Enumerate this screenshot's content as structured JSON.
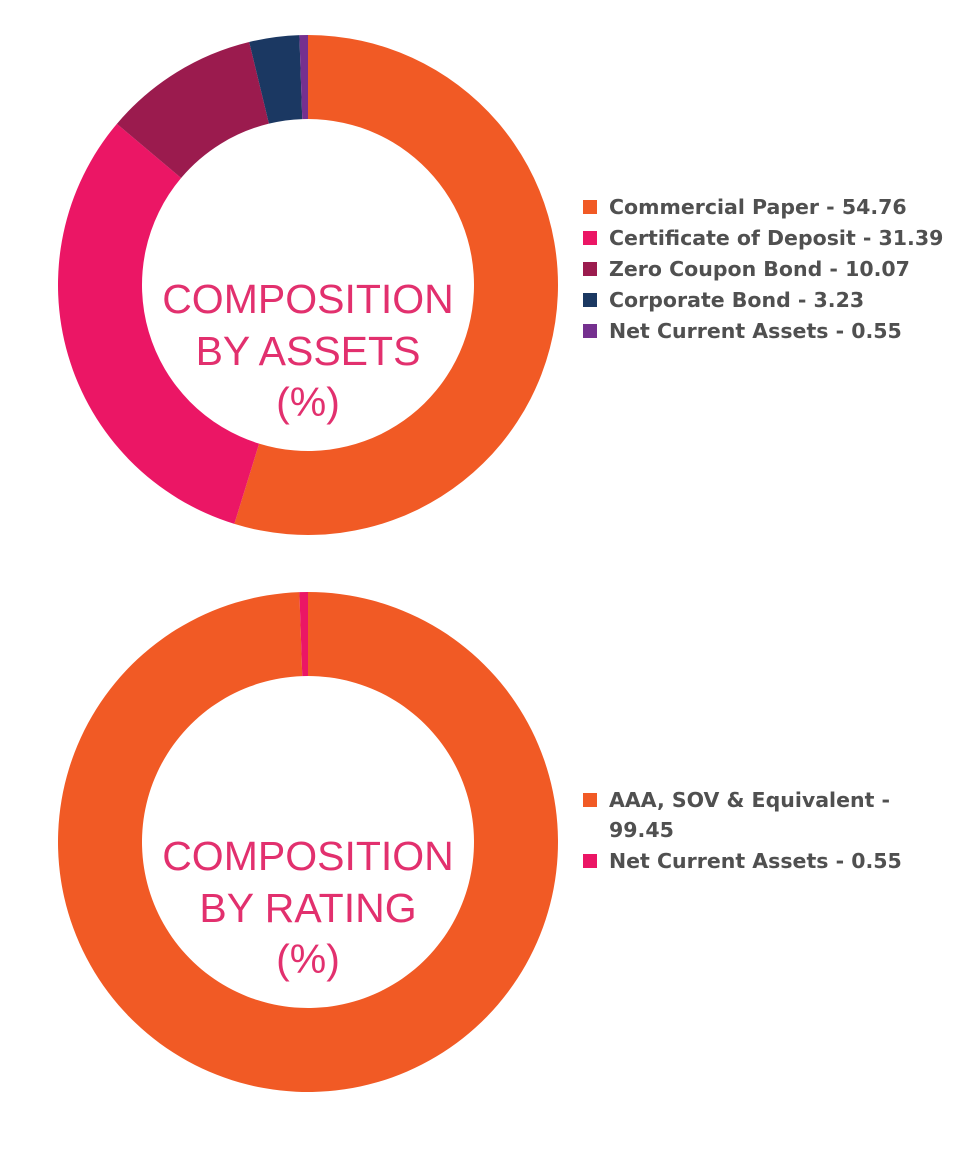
{
  "chart_data": [
    {
      "type": "pie",
      "title_lines": [
        "COMPOSITION",
        "BY ASSETS",
        "(%)"
      ],
      "legend_position": "right",
      "categories": [
        "Commercial Paper",
        "Certificate of Deposit",
        "Zero Coupon Bond",
        "Corporate Bond",
        "Net Current Assets"
      ],
      "values": [
        54.76,
        31.39,
        10.07,
        3.23,
        0.55
      ],
      "labels": [
        [
          "Commercial Paper - 54.76"
        ],
        [
          "Certificate of Deposit - 31.39"
        ],
        [
          "Zero Coupon Bond - 10.07"
        ],
        [
          "Corporate Bond - 3.23"
        ],
        [
          "Net Current Assets - 0.55"
        ]
      ],
      "colors": [
        "#F15A25",
        "#EB1665",
        "#9B1B4E",
        "#1B3862",
        "#75308F"
      ]
    },
    {
      "type": "pie",
      "title_lines": [
        "COMPOSITION",
        "BY RATING",
        "(%)"
      ],
      "legend_position": "right",
      "categories": [
        "AAA, SOV & Equivalent",
        "Net Current Assets"
      ],
      "values": [
        99.45,
        0.55
      ],
      "labels": [
        [
          "AAA, SOV & Equivalent -",
          "99.45"
        ],
        [
          "Net Current Assets - 0.55"
        ]
      ],
      "colors": [
        "#F15A25",
        "#EB1665"
      ]
    }
  ]
}
